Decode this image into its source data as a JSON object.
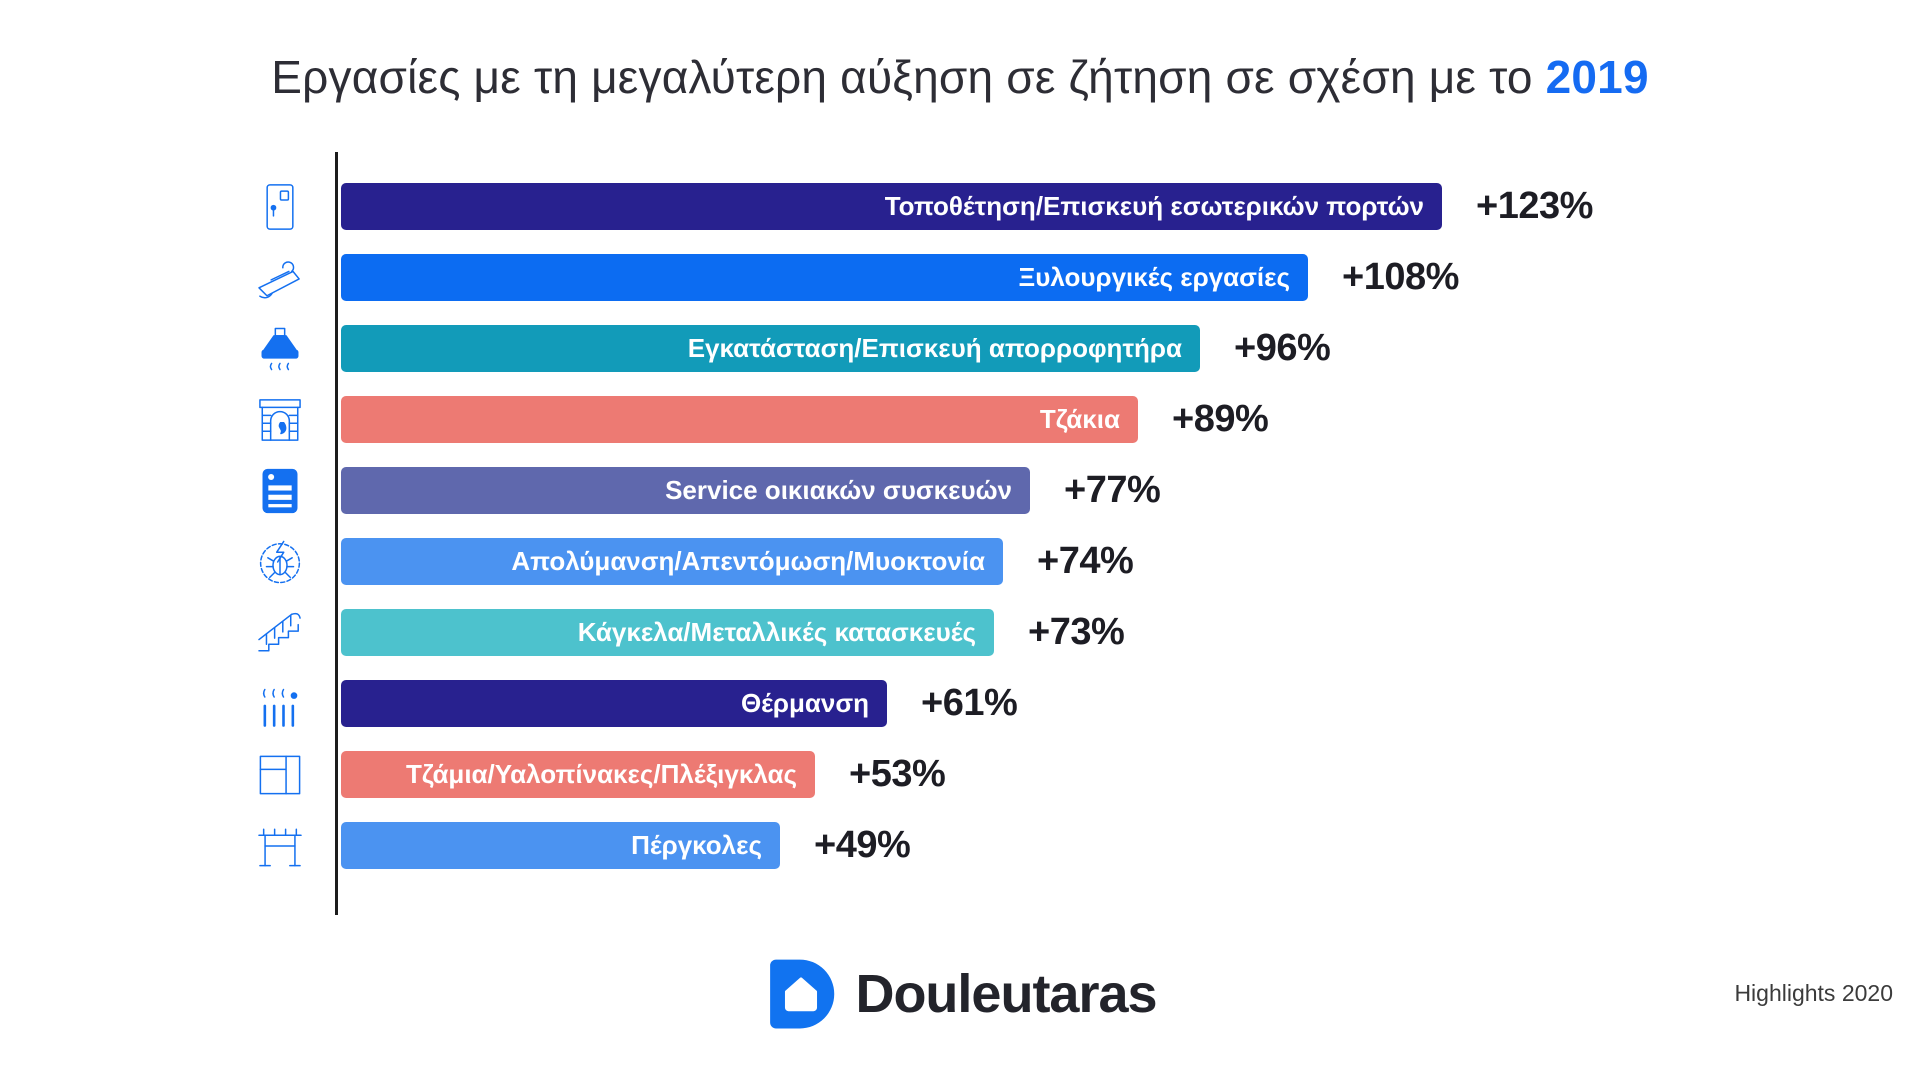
{
  "title": {
    "text": "Εργασίες με τη μεγαλύτερη αύξηση σε ζήτηση σε σχέση με το",
    "highlight": "2019",
    "highlight_color": "#156bf2"
  },
  "chart_data": {
    "type": "bar",
    "orientation": "horizontal",
    "title": "Εργασίες με τη μεγαλύτερη αύξηση σε ζήτηση σε σχέση με το 2019",
    "unit": "% increase vs 2019",
    "axis": {
      "baseline": 0,
      "max_value": 123,
      "gridlines": false,
      "value_axis_hidden": true
    },
    "categories": [
      "Τοποθέτηση/Επισκευή εσωτερικών πορτών",
      "Ξυλουργικές εργασίες",
      "Εγκατάσταση/Επισκευή απορροφητήρα",
      "Τζάκια",
      "Service οικιακών συσκευών",
      "Απολύμανση/Απεντόμωση/Μυοκτονία",
      "Κάγκελα/Μεταλλικές κατασκευές",
      "Θέρμανση",
      "Τζάμια/Υαλοπίνακες/Πλέξιγκλας",
      "Πέργκολες"
    ],
    "values": [
      123,
      108,
      96,
      89,
      77,
      74,
      73,
      61,
      53,
      49
    ],
    "value_labels": [
      "+123%",
      "+108%",
      "+96%",
      "+89%",
      "+77%",
      "+74%",
      "+73%",
      "+61%",
      "+53%",
      "+49%"
    ],
    "bar_colors": [
      "#28218f",
      "#0c6cf2",
      "#129bb9",
      "#ed7a73",
      "#5f68ad",
      "#4b93f1",
      "#4dc2cd",
      "#28218f",
      "#ed7a73",
      "#4b93f1"
    ],
    "icons": [
      "door",
      "wood-plane",
      "extractor-hood",
      "fireplace",
      "oven",
      "pest-control",
      "railing",
      "radiator",
      "window",
      "pergola"
    ],
    "icon_color": "#1470f0",
    "bar_label_color": "#ffffff",
    "value_label_color": "#1d1d24"
  },
  "footer": {
    "brand": "Douleutaras",
    "note": "Highlights 2020",
    "logo_color": "#1173f0"
  }
}
